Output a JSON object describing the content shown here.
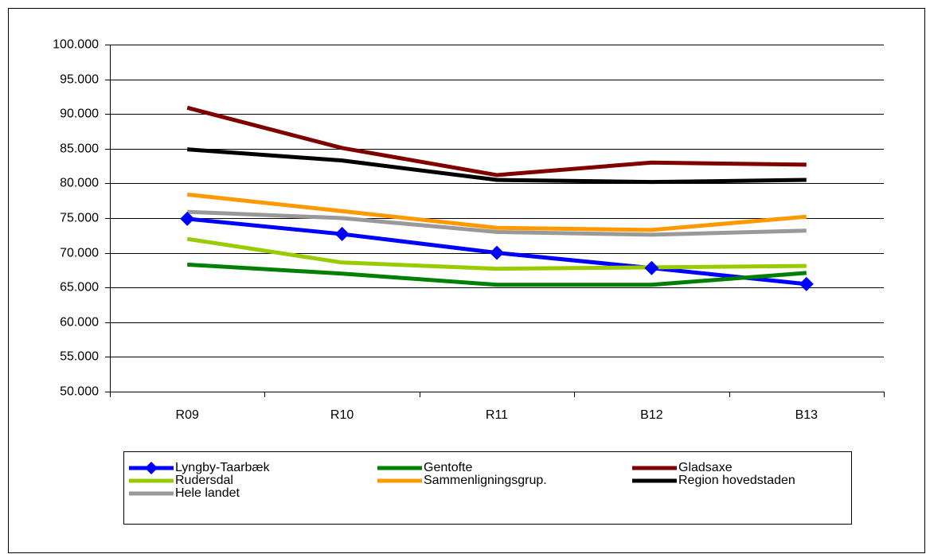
{
  "chart_data": {
    "type": "line",
    "categories": [
      "R09",
      "R10",
      "R11",
      "B12",
      "B13"
    ],
    "series": [
      {
        "name": "Lyngby-Taarbæk",
        "color": "#0000ff",
        "marker": "diamond",
        "values": [
          74900,
          72700,
          70000,
          67800,
          65500
        ]
      },
      {
        "name": "Gentofte",
        "color": "#008000",
        "values": [
          68300,
          67000,
          65400,
          65400,
          67100
        ]
      },
      {
        "name": "Gladsaxe",
        "color": "#800000",
        "values": [
          90900,
          85100,
          81200,
          83000,
          82700
        ]
      },
      {
        "name": "Rudersdal",
        "color": "#99cc00",
        "values": [
          72000,
          68600,
          67700,
          67900,
          68100
        ]
      },
      {
        "name": "Sammenligningsgrup.",
        "color": "#ff9900",
        "values": [
          78400,
          76000,
          73600,
          73300,
          75200
        ]
      },
      {
        "name": "Region hovedstaden",
        "color": "#000000",
        "values": [
          84900,
          83300,
          80500,
          80200,
          80500
        ]
      },
      {
        "name": "Hele landet",
        "color": "#999999",
        "values": [
          75900,
          75000,
          73000,
          72600,
          73200
        ]
      }
    ],
    "ylim": [
      50000,
      100000
    ],
    "yticks": [
      {
        "value": 50000,
        "label": "50.000"
      },
      {
        "value": 55000,
        "label": "55.000"
      },
      {
        "value": 60000,
        "label": "60.000"
      },
      {
        "value": 65000,
        "label": "65.000"
      },
      {
        "value": 70000,
        "label": "70.000"
      },
      {
        "value": 75000,
        "label": "75.000"
      },
      {
        "value": 80000,
        "label": "80.000"
      },
      {
        "value": 85000,
        "label": "85.000"
      },
      {
        "value": 90000,
        "label": "90.000"
      },
      {
        "value": 95000,
        "label": "95.000"
      },
      {
        "value": 100000,
        "label": "100.000"
      }
    ],
    "grid": true
  }
}
